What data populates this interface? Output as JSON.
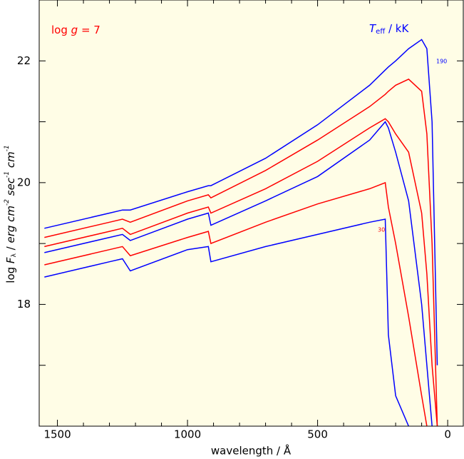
{
  "chart_data": {
    "type": "line",
    "xlabel": "wavelength / Å",
    "ylabel_parts": [
      "log ",
      "F",
      "λ",
      " / ",
      "erg cm",
      "-2",
      " sec",
      "-1",
      " cm",
      "-1"
    ],
    "annotation_logg": [
      "log ",
      "g",
      " = 7"
    ],
    "annotation_teff": [
      "T",
      "eff",
      " / kK"
    ],
    "label_top": "190",
    "label_bottom": "30",
    "background": "#fffde6",
    "xlim": [
      1570,
      -60
    ],
    "ylim": [
      16,
      23
    ],
    "xticks": [
      1500,
      1000,
      500,
      0
    ],
    "xminor": [
      1400,
      1300,
      1200,
      1100,
      900,
      800,
      700,
      600,
      400,
      300,
      200,
      100
    ],
    "yticks": [
      18,
      20,
      22
    ],
    "yminor": [
      17,
      19,
      21
    ],
    "x": [
      1550,
      1300,
      1250,
      1220,
      1000,
      920,
      910,
      700,
      500,
      300,
      240,
      228,
      200,
      150,
      100,
      80,
      60,
      40
    ],
    "series": [
      {
        "color": "#0000ff",
        "values": [
          19.25,
          19.5,
          19.55,
          19.55,
          19.85,
          19.95,
          19.95,
          20.4,
          20.95,
          21.6,
          21.85,
          21.9,
          22.0,
          22.2,
          22.35,
          22.2,
          21.0,
          17.0
        ]
      },
      {
        "color": "#ff0000",
        "values": [
          19.1,
          19.35,
          19.4,
          19.35,
          19.7,
          19.8,
          19.75,
          20.2,
          20.7,
          21.25,
          21.45,
          21.5,
          21.6,
          21.7,
          21.5,
          20.8,
          19.0,
          16.0
        ]
      },
      {
        "color": "#ff0000",
        "values": [
          18.95,
          19.2,
          19.25,
          19.15,
          19.5,
          19.6,
          19.5,
          19.9,
          20.35,
          20.9,
          21.05,
          21.0,
          20.8,
          20.5,
          19.5,
          18.5,
          17.0,
          16.0
        ]
      },
      {
        "color": "#0000ff",
        "values": [
          18.85,
          19.1,
          19.15,
          19.05,
          19.4,
          19.5,
          19.3,
          19.7,
          20.1,
          20.7,
          21.0,
          20.9,
          20.5,
          19.7,
          18.0,
          17.0,
          16.0,
          null
        ]
      },
      {
        "color": "#ff0000",
        "values": [
          18.65,
          18.9,
          18.95,
          18.8,
          19.1,
          19.2,
          19.0,
          19.35,
          19.65,
          19.9,
          20.0,
          19.6,
          19.0,
          17.8,
          16.5,
          16.0,
          null,
          null
        ]
      },
      {
        "color": "#0000ff",
        "values": [
          18.45,
          18.7,
          18.75,
          18.55,
          18.9,
          18.95,
          18.7,
          18.95,
          19.15,
          19.35,
          19.4,
          17.5,
          16.5,
          16.0,
          null,
          null,
          null,
          null
        ]
      }
    ]
  }
}
